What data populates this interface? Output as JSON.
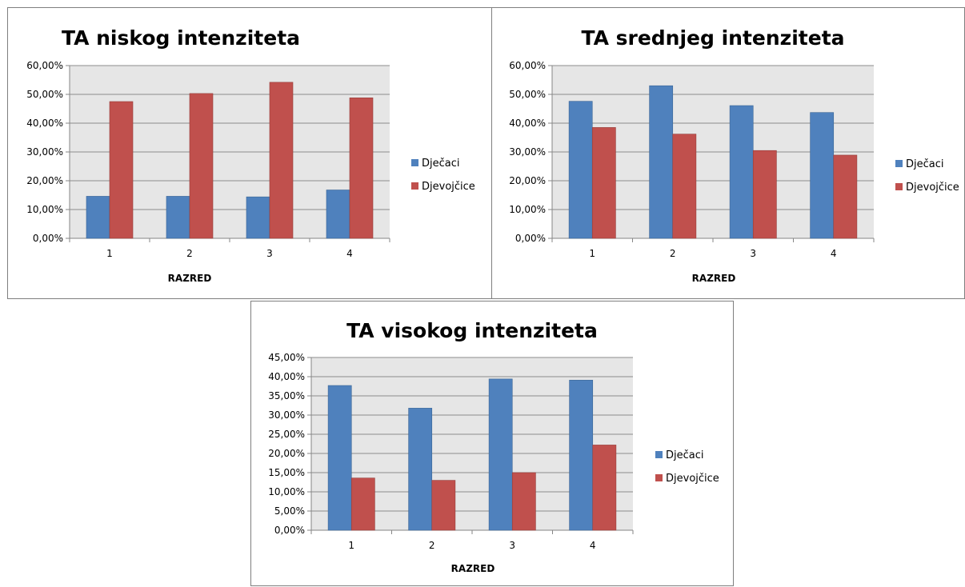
{
  "colors": {
    "djecaci": "#4f81bd",
    "djevojcice": "#c0504d",
    "plot_bg": "#e6e6e6",
    "grid": "#8c8c8c"
  },
  "chart_data": [
    {
      "type": "bar",
      "title": "TA niskog intenziteta",
      "xlabel": "RAZRED",
      "ylabel": "",
      "categories": [
        "1",
        "2",
        "3",
        "4"
      ],
      "ylim": [
        0,
        0.6
      ],
      "yticks": [
        "0,00%",
        "10,00%",
        "20,00%",
        "30,00%",
        "40,00%",
        "50,00%",
        "60,00%"
      ],
      "grid": true,
      "legend": "right",
      "series": [
        {
          "name": "Dječaci",
          "values": [
            0.146,
            0.146,
            0.144,
            0.168
          ]
        },
        {
          "name": "Djevojčice",
          "values": [
            0.475,
            0.503,
            0.542,
            0.488
          ]
        }
      ]
    },
    {
      "type": "bar",
      "title": "TA srednjeg intenziteta",
      "xlabel": "RAZRED",
      "ylabel": "",
      "categories": [
        "1",
        "2",
        "3",
        "4"
      ],
      "ylim": [
        0,
        0.6
      ],
      "yticks": [
        "0,00%",
        "10,00%",
        "20,00%",
        "30,00%",
        "40,00%",
        "50,00%",
        "60,00%"
      ],
      "grid": true,
      "legend": "right",
      "series": [
        {
          "name": "Dječaci",
          "values": [
            0.476,
            0.53,
            0.461,
            0.437
          ]
        },
        {
          "name": "Djevojčice",
          "values": [
            0.385,
            0.362,
            0.305,
            0.289
          ]
        }
      ]
    },
    {
      "type": "bar",
      "title": "TA visokog intenziteta",
      "xlabel": "RAZRED",
      "ylabel": "",
      "categories": [
        "1",
        "2",
        "3",
        "4"
      ],
      "ylim": [
        0,
        0.45
      ],
      "yticks": [
        "0,00%",
        "5,00%",
        "10,00%",
        "15,00%",
        "20,00%",
        "25,00%",
        "30,00%",
        "35,00%",
        "40,00%",
        "45,00%"
      ],
      "grid": true,
      "legend": "right",
      "series": [
        {
          "name": "Dječaci",
          "values": [
            0.377,
            0.318,
            0.394,
            0.391
          ]
        },
        {
          "name": "Djevojčice",
          "values": [
            0.136,
            0.13,
            0.15,
            0.222
          ]
        }
      ]
    }
  ]
}
